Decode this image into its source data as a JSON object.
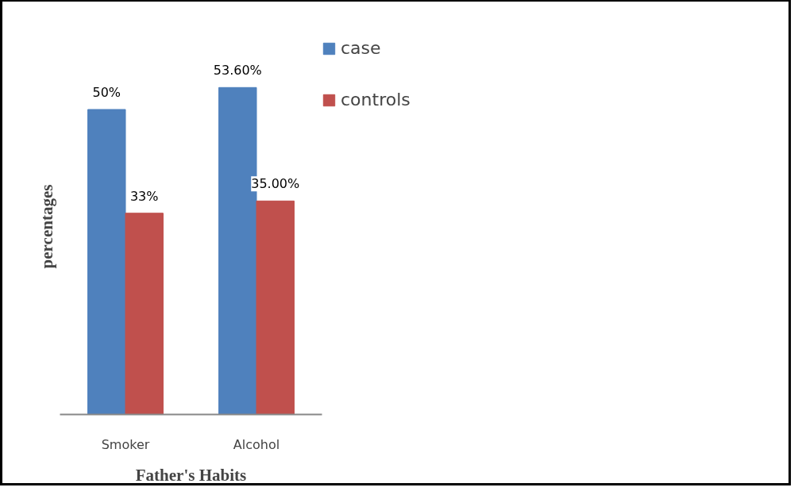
{
  "chart_data": {
    "type": "bar",
    "xlabel": "Father's Habits",
    "ylabel": "percentages",
    "categories": [
      "Smoker",
      "Alcohol"
    ],
    "series": [
      {
        "name": "case",
        "color": "#4f81bd",
        "values": [
          50,
          53.6
        ],
        "value_labels": [
          "50%",
          "53.60%"
        ]
      },
      {
        "name": "controls",
        "color": "#c0504d",
        "values": [
          33,
          35
        ],
        "value_labels": [
          "33%",
          "35.00%"
        ]
      }
    ],
    "tick_labels": "x",
    "grid": false,
    "legend": "top right"
  }
}
